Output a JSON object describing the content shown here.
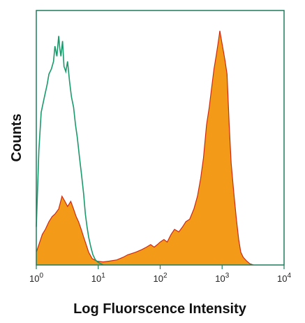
{
  "chart_data": {
    "type": "area",
    "title": "",
    "xlabel": "Log Fluorscence Intensity",
    "ylabel": "Counts",
    "x_scale": "log",
    "xlim": [
      1,
      10000
    ],
    "ylim": [
      0,
      100
    ],
    "grid": false,
    "legend": "none",
    "xticks": [
      {
        "base": "10",
        "exp": "0"
      },
      {
        "base": "10",
        "exp": "1"
      },
      {
        "base": "10",
        "exp": "2"
      },
      {
        "base": "10",
        "exp": "3"
      },
      {
        "base": "10",
        "exp": "4"
      }
    ],
    "series": [
      {
        "style": "outline",
        "color": "#1a9a6c",
        "x": [
          1.0,
          1.1,
          1.2,
          1.35,
          1.5,
          1.6,
          1.75,
          1.9,
          2.0,
          2.15,
          2.3,
          2.4,
          2.5,
          2.65,
          2.8,
          3.0,
          3.2,
          3.45,
          3.7,
          4.0,
          4.3,
          4.6,
          5.0,
          5.4,
          5.8,
          6.2,
          6.6,
          7.0,
          7.6,
          8.2,
          9.0,
          10.0,
          11.0,
          12.0
        ],
        "y": [
          15,
          45,
          60,
          66,
          71,
          75,
          77,
          80,
          86,
          82,
          90,
          85,
          82,
          88,
          78,
          76,
          80,
          72,
          66,
          62,
          55,
          50,
          42,
          35,
          28,
          20,
          15,
          11,
          7,
          4,
          2,
          1,
          0.5,
          0
        ]
      },
      {
        "style": "filled",
        "color": "#f39a18",
        "edge_color": "#cc2a10",
        "x": [
          1.0,
          1.1,
          1.25,
          1.4,
          1.6,
          1.8,
          2.0,
          2.3,
          2.6,
          2.9,
          3.2,
          3.6,
          4.0,
          4.4,
          4.8,
          5.3,
          5.8,
          6.4,
          7.0,
          8.0,
          9.5,
          12,
          15,
          20,
          25,
          30,
          40,
          50,
          60,
          70,
          80,
          90,
          100,
          115,
          130,
          150,
          170,
          200,
          230,
          260,
          300,
          350,
          400,
          450,
          500,
          560,
          620,
          680,
          740,
          800,
          860,
          920,
          980,
          1050,
          1120,
          1200,
          1300,
          1400,
          1550,
          1700,
          1850,
          2000,
          2200,
          2500,
          2800,
          3200
        ],
        "y": [
          5,
          8,
          12,
          14,
          17,
          19,
          20,
          22,
          27,
          25,
          23,
          25,
          22,
          19,
          17,
          14,
          11,
          8,
          5,
          2.5,
          1.5,
          1.2,
          1.5,
          2,
          3,
          4,
          5,
          6,
          7,
          8,
          7,
          8,
          9,
          10,
          9,
          12,
          14,
          13,
          15,
          17,
          18,
          22,
          27,
          34,
          42,
          55,
          62,
          70,
          77,
          82,
          87,
          92,
          88,
          84,
          80,
          75,
          55,
          40,
          28,
          18,
          10,
          5,
          3,
          1.5,
          0.5,
          0
        ]
      }
    ]
  }
}
